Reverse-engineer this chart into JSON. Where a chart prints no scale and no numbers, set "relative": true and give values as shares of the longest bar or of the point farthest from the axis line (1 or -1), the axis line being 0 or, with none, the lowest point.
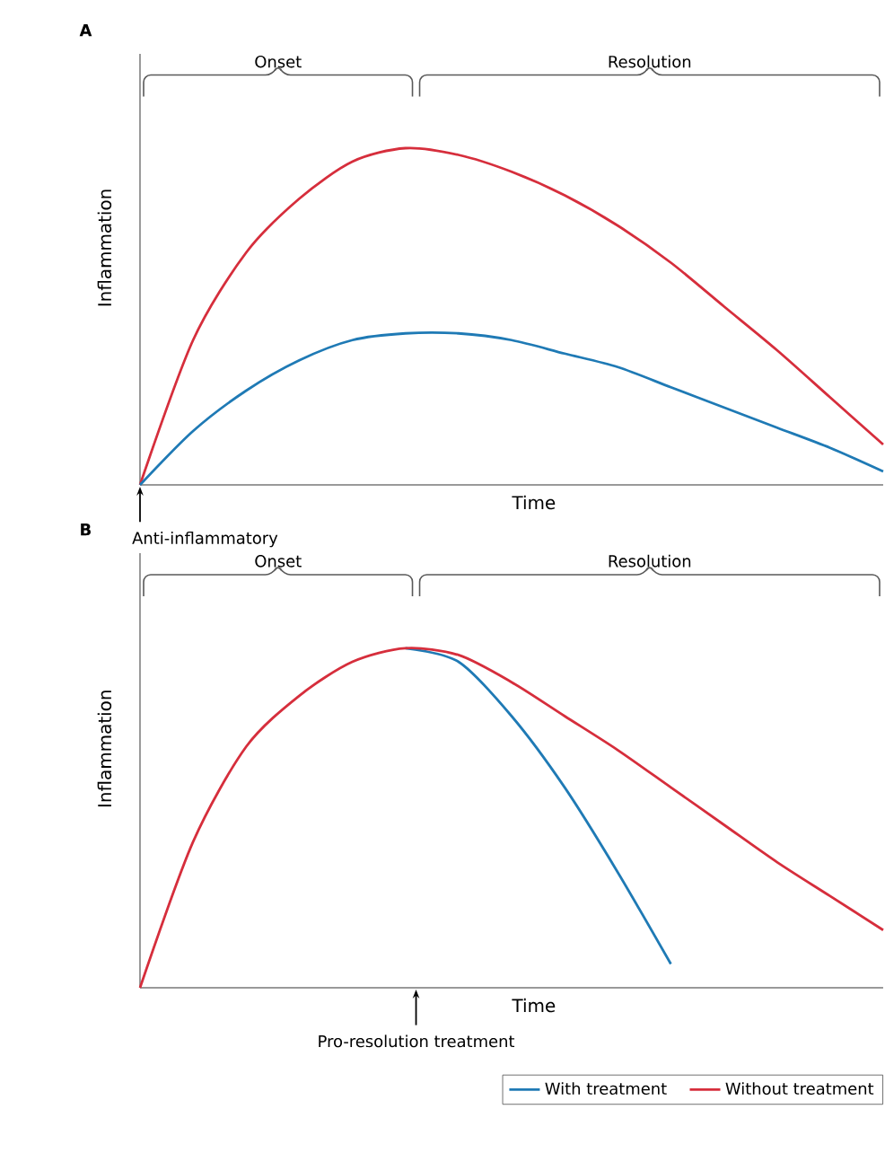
{
  "chart_data": [
    {
      "type": "line",
      "title": "A",
      "relative": true,
      "xlabel": "Time",
      "ylabel": "Inflammation",
      "categories": [
        null,
        null,
        null,
        null,
        null,
        null,
        null,
        null,
        null,
        null,
        null,
        null,
        null,
        null,
        null
      ],
      "series": [
        {
          "color": "#d62e3c",
          "values": [
            0,
            0.43,
            0.69,
            0.85,
            0.96,
            1.0,
            0.98,
            0.93,
            0.86,
            0.77,
            0.66,
            0.53,
            0.4,
            0.26,
            0.12
          ]
        },
        {
          "color": "#1f7ab5",
          "values": [
            0,
            0.16,
            0.28,
            0.37,
            0.43,
            0.45,
            0.45,
            0.43,
            0.39,
            0.35,
            0.29,
            0.23,
            0.17,
            0.11,
            0.04
          ]
        }
      ],
      "annotations": [
        "Onset",
        "Resolution",
        "Anti-inflammatory"
      ],
      "legend": false
    },
    {
      "type": "line",
      "title": "B",
      "relative": true,
      "xlabel": "Time",
      "ylabel": "Inflammation",
      "categories": [
        null,
        null,
        null,
        null,
        null,
        null,
        null,
        null,
        null,
        null,
        null,
        null,
        null,
        null,
        null
      ],
      "series": [
        {
          "name": "With treatment",
          "color": "#1f7ab5",
          "values": [
            null,
            null,
            null,
            null,
            null,
            1.0,
            0.96,
            0.8,
            0.59,
            0.34,
            0.07,
            null,
            null,
            null,
            null
          ]
        },
        {
          "name": "Without treatment",
          "color": "#d62e3c",
          "values": [
            0,
            0.43,
            0.71,
            0.86,
            0.96,
            1.0,
            0.98,
            0.9,
            0.8,
            0.7,
            0.59,
            0.48,
            0.37,
            0.27,
            0.17
          ]
        }
      ],
      "annotations": [
        "Onset",
        "Resolution",
        "Pro-resolution treatment"
      ],
      "legend": "bottom"
    }
  ]
}
